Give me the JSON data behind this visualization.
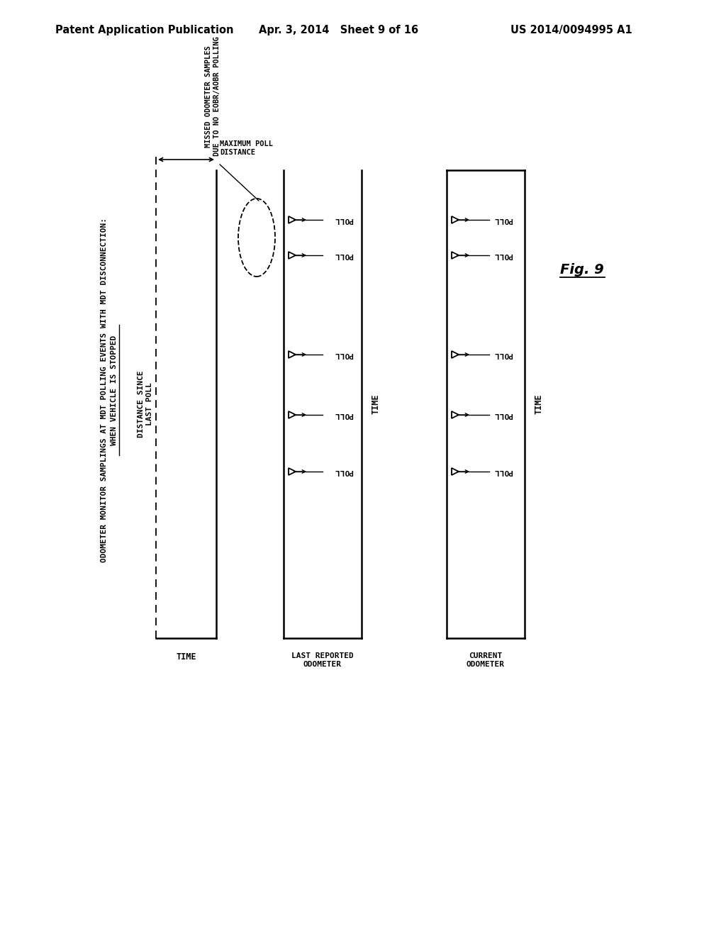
{
  "background_color": "#ffffff",
  "header_left": "Patent Application Publication",
  "header_center": "Apr. 3, 2014   Sheet 9 of 16",
  "header_right": "US 2014/0094995 A1",
  "title_line1": "ODOMETER MONITOR SAMPLINGS AT MDT POLLING EVENTS WITH MDT DISCONNECTION:",
  "title_line2": "WHEN VEHICLE IS STOPPED",
  "fig_label": "Fig. 9",
  "lp_ylabel": "DISTANCE SINCE\nLAST POLL",
  "lp_xlabel": "TIME",
  "lp_bracket": "MAXIMUM POLL\nDISTANCE",
  "mp_ylabel": "LAST REPORTED\nODOMETER",
  "mp_xlabel": "TIME",
  "mp_time_label": "TIME",
  "mp_annotation": "MISSED ODOMETER SAMPLES\nDUE TO NO EOBR/AOBR POLLING",
  "rp_ylabel": "CURRENT\nODOMETER",
  "rp_time_label": "TIME",
  "poll_text": "POLL"
}
